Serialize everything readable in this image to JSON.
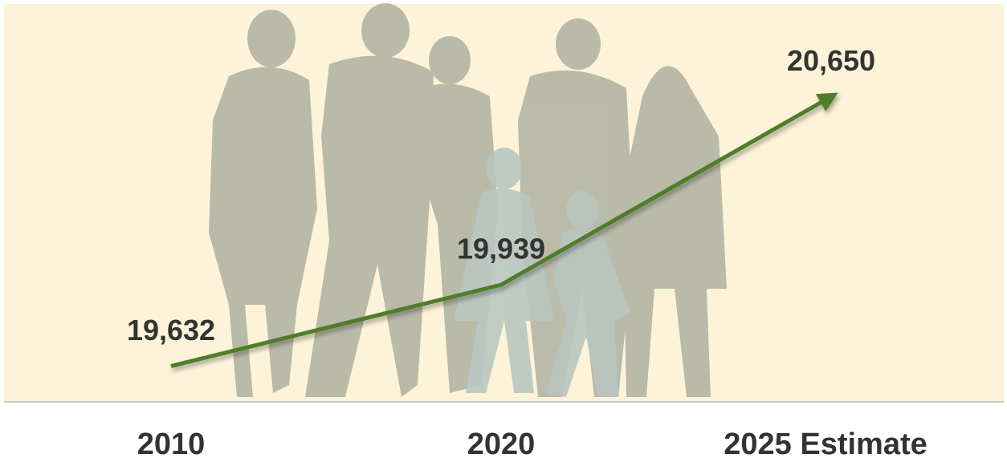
{
  "chart_data": {
    "type": "line",
    "categories": [
      "2010",
      "2020",
      "2025 Estimate"
    ],
    "values": [
      19632,
      19939,
      20650
    ],
    "value_labels": [
      "19,632",
      "19,939",
      "20,650"
    ],
    "color": "#4f7d2c",
    "ylim": [
      19500,
      21000
    ]
  }
}
